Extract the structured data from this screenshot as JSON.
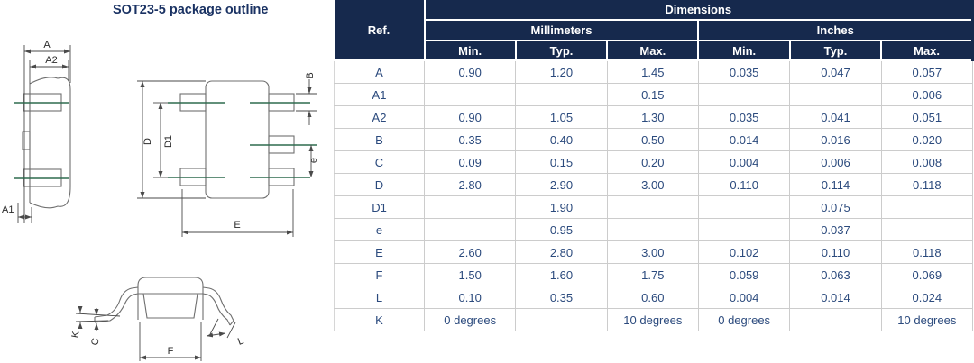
{
  "title": "SOT23-5 package outline",
  "table": {
    "header": {
      "ref": "Ref.",
      "dimensions": "Dimensions",
      "units": [
        "Millimeters",
        "Inches"
      ],
      "columns": [
        "Min.",
        "Typ.",
        "Max.",
        "Min.",
        "Typ.",
        "Max."
      ]
    },
    "rows": [
      {
        "ref": "A",
        "values": [
          "0.90",
          "1.20",
          "1.45",
          "0.035",
          "0.047",
          "0.057"
        ]
      },
      {
        "ref": "A1",
        "values": [
          "",
          "",
          "0.15",
          "",
          "",
          "0.006"
        ]
      },
      {
        "ref": "A2",
        "values": [
          "0.90",
          "1.05",
          "1.30",
          "0.035",
          "0.041",
          "0.051"
        ]
      },
      {
        "ref": "B",
        "values": [
          "0.35",
          "0.40",
          "0.50",
          "0.014",
          "0.016",
          "0.020"
        ]
      },
      {
        "ref": "C",
        "values": [
          "0.09",
          "0.15",
          "0.20",
          "0.004",
          "0.006",
          "0.008"
        ]
      },
      {
        "ref": "D",
        "values": [
          "2.80",
          "2.90",
          "3.00",
          "0.110",
          "0.114",
          "0.118"
        ]
      },
      {
        "ref": "D1",
        "values": [
          "",
          "1.90",
          "",
          "",
          "0.075",
          ""
        ]
      },
      {
        "ref": "e",
        "values": [
          "",
          "0.95",
          "",
          "",
          "0.037",
          ""
        ]
      },
      {
        "ref": "E",
        "values": [
          "2.60",
          "2.80",
          "3.00",
          "0.102",
          "0.110",
          "0.118"
        ]
      },
      {
        "ref": "F",
        "values": [
          "1.50",
          "1.60",
          "1.75",
          "0.059",
          "0.063",
          "0.069"
        ]
      },
      {
        "ref": "L",
        "values": [
          "0.10",
          "0.35",
          "0.60",
          "0.004",
          "0.014",
          "0.024"
        ]
      },
      {
        "ref": "K",
        "values": [
          "0 degrees",
          "",
          "10 degrees",
          "0 degrees",
          "",
          "10 degrees"
        ]
      }
    ]
  },
  "drawing": {
    "labels": {
      "a": "A",
      "a1": "A1",
      "a2": "A2",
      "b": "B",
      "c": "C",
      "d": "D",
      "d1": "D1",
      "e": "e",
      "ee": "E",
      "f": "F",
      "l": "L",
      "k": "K"
    }
  },
  "colors": {
    "header_bg": "#16294d",
    "header_text": "#ffffff",
    "cell_text": "#2b4a7d",
    "grid_line": "#cccccc",
    "centerline_green": "#2e6b4f",
    "outline_gray": "#6f6f6f"
  }
}
